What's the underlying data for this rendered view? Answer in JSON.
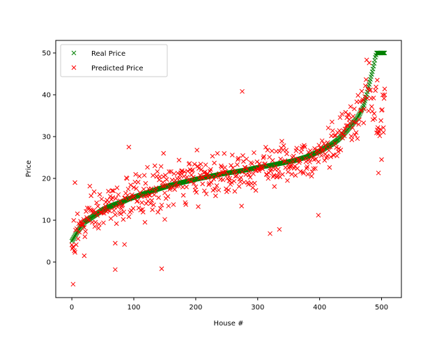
{
  "chart_data": {
    "type": "scatter",
    "title": "",
    "xlabel": "House #",
    "ylabel": "Price",
    "xlim": [
      -26,
      532
    ],
    "ylim": [
      -8.5,
      53
    ],
    "xticks": [
      0,
      100,
      200,
      300,
      400,
      500
    ],
    "yticks": [
      0,
      10,
      20,
      30,
      40,
      50
    ],
    "xtick_labels": [
      "0",
      "100",
      "200",
      "300",
      "400",
      "500"
    ],
    "ytick_labels": [
      "0",
      "10",
      "20",
      "30",
      "40",
      "50"
    ],
    "grid": false,
    "legend_position": "top-left",
    "marker": "x",
    "series": [
      {
        "name": "Real Price",
        "color": "#008000",
        "curve": {
          "x": [
            0,
            10,
            20,
            30,
            40,
            50,
            60,
            70,
            80,
            90,
            100,
            120,
            140,
            160,
            180,
            200,
            220,
            240,
            260,
            280,
            300,
            320,
            340,
            360,
            380,
            400,
            420,
            430,
            440,
            450,
            460,
            465,
            470,
            475,
            480,
            485,
            488,
            490,
            492,
            495,
            500,
            505
          ],
          "y": [
            5,
            7.5,
            9.5,
            10.5,
            11.5,
            12.5,
            13.2,
            13.8,
            14.3,
            15.0,
            15.5,
            16.5,
            17.5,
            18.4,
            19.1,
            19.8,
            20.4,
            21.0,
            21.5,
            22.0,
            22.6,
            23.1,
            23.7,
            24.3,
            25.2,
            26.5,
            28.2,
            29.3,
            30.8,
            32.5,
            34.3,
            35.5,
            37.0,
            39.5,
            42.5,
            45.5,
            47.5,
            49.0,
            50,
            50,
            50,
            50
          ]
        }
      },
      {
        "name": "Predicted Price",
        "color": "#ff0000",
        "outliers": [
          {
            "x": 2,
            "y": -5.3
          },
          {
            "x": 20,
            "y": 1.5
          },
          {
            "x": 70,
            "y": -1.8
          },
          {
            "x": 145,
            "y": -1.6
          },
          {
            "x": 92,
            "y": 27.5
          },
          {
            "x": 275,
            "y": 40.8
          },
          {
            "x": 320,
            "y": 6.8
          },
          {
            "x": 335,
            "y": 7.8
          },
          {
            "x": 398,
            "y": 11.2
          },
          {
            "x": 70,
            "y": 4.5
          },
          {
            "x": 85,
            "y": 4.2
          },
          {
            "x": 5,
            "y": 19.0
          },
          {
            "x": 500,
            "y": 24.5
          },
          {
            "x": 495,
            "y": 21.3
          },
          {
            "x": 503,
            "y": 31.0
          },
          {
            "x": 505,
            "y": 40.0
          },
          {
            "x": 493,
            "y": 43.5
          },
          {
            "x": 148,
            "y": 26.0
          },
          {
            "x": 118,
            "y": 9.5
          },
          {
            "x": 150,
            "y": 10.2
          }
        ],
        "count": 506
      }
    ]
  },
  "legend": {
    "items": [
      {
        "label": "Real Price",
        "color": "#008000",
        "marker": "x"
      },
      {
        "label": "Predicted Price",
        "color": "#ff0000",
        "marker": "x"
      }
    ]
  }
}
